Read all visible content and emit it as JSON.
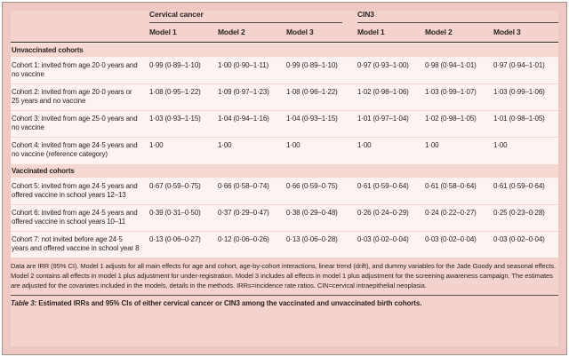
{
  "colors": {
    "panel": "#f4d2cd",
    "band": "#f6d8d3",
    "rowbg": "#fdf3f0",
    "rule_dark": "#2a2624",
    "text": "#2a2422"
  },
  "table": {
    "col_groups": [
      {
        "label": "Cervical cancer",
        "models": [
          "Model 1",
          "Model 2",
          "Model 3"
        ]
      },
      {
        "label": "CIN3",
        "models": [
          "Model 1",
          "Model 2",
          "Model 3"
        ]
      }
    ],
    "sections": [
      {
        "header": "Unvaccinated cohorts",
        "rows": [
          {
            "label": "Cohort 1: invited from age 20·0 years and no vaccine",
            "values": [
              "0·99 (0·89–1·10)",
              "1·00 (0·90–1·11)",
              "0·99 (0·89–1·10)",
              "0·97 (0·93–1·00)",
              "0·98 (0·94–1·01)",
              "0·97 (0·94–1·01)"
            ]
          },
          {
            "label": "Cohort 2: invited from age 20·0 years or 25 years and no vaccine",
            "values": [
              "1·08 (0·95–1·22)",
              "1·09 (0·97–1·23)",
              "1·08 (0·96–1·22)",
              "1·02 (0·98–1·06)",
              "1·03 (0·99–1·07)",
              "1·03 (0·99–1·06)"
            ]
          },
          {
            "label": "Cohort 3: invited from age 25·0 years and no vaccine",
            "values": [
              "1·03 (0·93–1·15)",
              "1·04 (0·94–1·16)",
              "1·04 (0·93–1·15)",
              "1·01 (0·97–1·04)",
              "1·02 (0·98–1·05)",
              "1·01 (0·98–1·05)"
            ]
          },
          {
            "label": "Cohort 4: invited from age 24·5 years and no vaccine  (reference category)",
            "values": [
              "1·00",
              "1·00",
              "1·00",
              "1·00",
              "1·00",
              "1·00"
            ]
          }
        ]
      },
      {
        "header": "Vaccinated cohorts",
        "rows": [
          {
            "label": "Cohort 5: invited from age 24·5 years and offered vaccine in school years 12–13",
            "values": [
              "0·67 (0·59–0·75)",
              "0·66 (0·58–0·74)",
              "0·66 (0·59–0·75)",
              "0·61 (0·59–0·64)",
              "0·61 (0·58–0·64)",
              "0·61 (0·59–0·64)"
            ]
          },
          {
            "label": "Cohort 6: invited from age 24·5 years and offered vaccine in school years 10–11",
            "values": [
              "0·39 (0·31–0·50)",
              "0·37 (0·29–0·47)",
              "0·38 (0·29–0·48)",
              "0·26 (0·24–0·29)",
              "0·24 (0·22–0·27)",
              "0·25 (0·23–0·28)"
            ]
          },
          {
            "label": "Cohort 7: not invited before age 24·5 years and offered vaccine in school year 8",
            "values": [
              "0·13 (0·06–0·27)",
              "0·12 (0·06–0·26)",
              "0·13 (0·06–0·28)",
              "0·03 (0·02–0·04)",
              "0·03 (0·02–0·04)",
              "0·03 (0·02–0·04)"
            ]
          }
        ]
      }
    ],
    "footnote": "Data are IRR (95% CI). Model 1 adjusts for all main effects for age and cohort, age-by-cohort interactions, linear trend (drift), and dummy variables for the Jade Goody and seasonal effects. Model 2 contains all effects in model 1 plus adjustment for under-registration. Model 3 includes all effects in model 1 plus adjustment for the screening awareness campaign. The estimates are adjusted for the covariates included in the models, details in the methods. IRRs=incidence rate ratios. CIN=cervical intraepithelial neoplasia.",
    "caption_label": "Table 3:",
    "caption_text": " Estimated IRRs and 95% CIs of either cervical cancer or CIN3 among the vaccinated and unvaccinated birth cohorts."
  }
}
